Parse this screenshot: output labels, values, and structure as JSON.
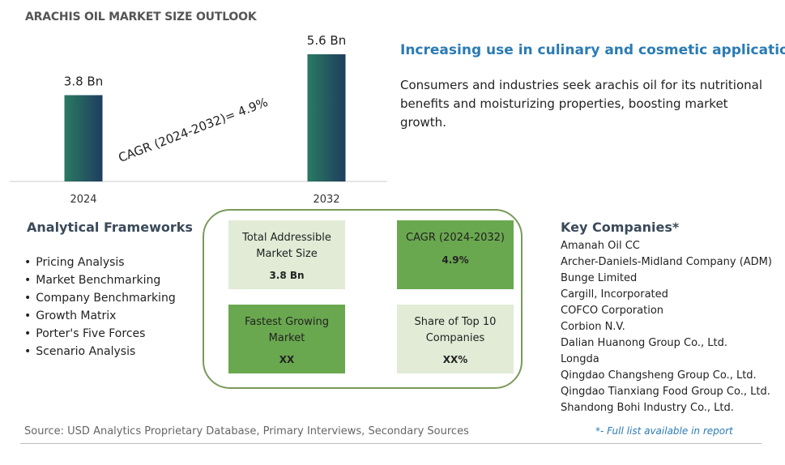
{
  "title": "ARACHIS OIL MARKET SIZE OUTLOOK",
  "chart_data": {
    "type": "bar",
    "categories": [
      "2024",
      "2032"
    ],
    "values": [
      3.8,
      5.6
    ],
    "value_labels": [
      "3.8 Bn",
      "5.6 Bn"
    ],
    "annotation": "CAGR (2024-2032)=  4.9%",
    "bar_gradient": [
      "#2a7a62",
      "#1f3d5e"
    ],
    "ylim": [
      0,
      5.6
    ]
  },
  "headline": "Increasing use in culinary and cosmetic applications.",
  "description": "Consumers and industries seek arachis oil for its nutritional benefits and moisturizing properties, boosting market growth.",
  "frameworks": {
    "title": "Analytical Frameworks",
    "items": [
      "Pricing Analysis",
      "Market Benchmarking",
      "Company Benchmarking",
      "Growth Matrix",
      "Porter's Five Forces",
      "Scenario Analysis"
    ]
  },
  "cards": [
    {
      "label": "Total Addressible Market Size",
      "value": "3.8 Bn"
    },
    {
      "label": "CAGR (2024-2032)",
      "value": "4.9%"
    },
    {
      "label": "Fastest Growing Market",
      "value": "XX"
    },
    {
      "label": "Share of Top 10 Companies",
      "value": "XX%"
    }
  ],
  "key_companies": {
    "title": "Key Companies*",
    "items": [
      "Amanah Oil CC",
      "Archer-Daniels-Midland Company (ADM)",
      "Bunge Limited",
      "Cargill, Incorporated",
      "COFCO Corporation",
      "Corbion N.V.",
      "Dalian Huanong Group Co., Ltd.",
      "Longda",
      "Qingdao Changsheng Group Co., Ltd.",
      "Qingdao Tianxiang Food Group Co., Ltd.",
      "Shandong Bohi Industry Co., Ltd."
    ]
  },
  "source": "Source: USD Analytics Proprietary Database, Primary Interviews, Secondary Sources",
  "footnote": "*- Full list available in report"
}
